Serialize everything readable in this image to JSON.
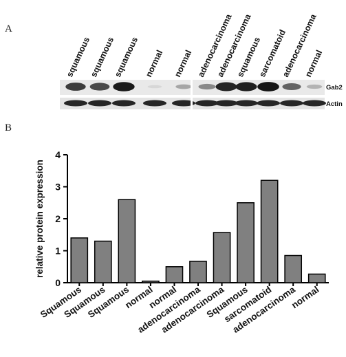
{
  "panels": {
    "a": "A",
    "b": "B"
  },
  "blot": {
    "lanes": [
      "squamous",
      "squamous",
      "squamous",
      "normal",
      "normal",
      "adenocarcinoma",
      "adenocarcinoma",
      "squamous",
      "sarcomatoid",
      "adenocarcinoma",
      "normal"
    ],
    "bands": [
      "Gab2",
      "Actin"
    ],
    "gab2_band_strength": [
      0.78,
      0.72,
      0.95,
      0.05,
      0.28,
      0.42,
      0.9,
      0.92,
      0.97,
      0.6,
      0.22
    ]
  },
  "chart_data": {
    "type": "bar",
    "categories": [
      "Squamous",
      "Squamous",
      "Squamous",
      "normal",
      "normal",
      "adenocarcinoma",
      "adenocarcinoma",
      "Squamous",
      "sarcomatoid",
      "adenocarcinoma",
      "normal"
    ],
    "values": [
      1.4,
      1.3,
      2.6,
      0.05,
      0.5,
      0.67,
      1.57,
      2.5,
      3.2,
      0.85,
      0.27
    ],
    "title": "",
    "xlabel": "",
    "ylabel": "relative protein expression",
    "ylim": [
      0,
      4
    ],
    "yticks": [
      "0",
      "1",
      "2",
      "3",
      "4"
    ],
    "grid": false,
    "bar_color": "#808080"
  }
}
